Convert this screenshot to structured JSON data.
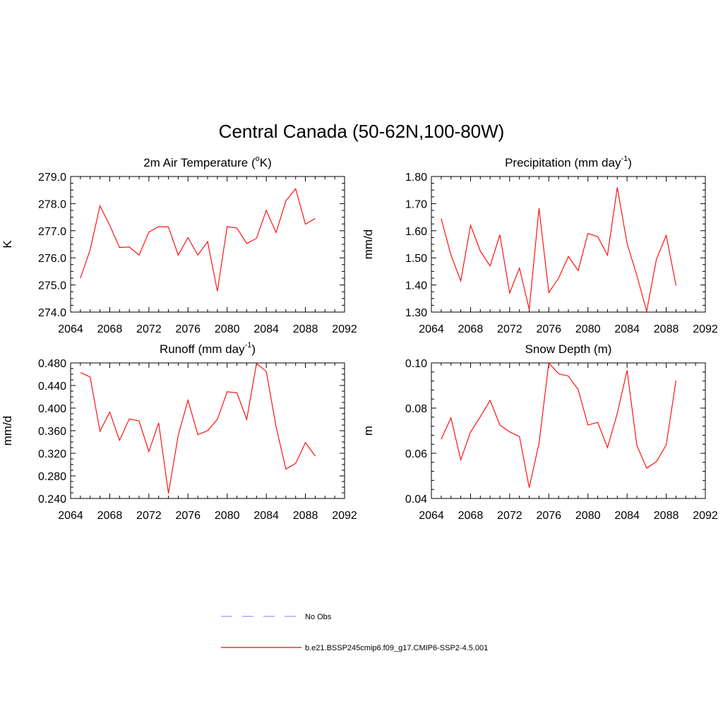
{
  "figure": {
    "title": "Central Canada (50-62N,100-80W)"
  },
  "chart_data": [
    {
      "type": "line",
      "title": "2m Air Temperature (°K)",
      "title_parts": [
        "2m Air Temperature (",
        "o",
        "K)"
      ],
      "xlabel": "",
      "ylabel": "K",
      "xlim": [
        2064,
        2092
      ],
      "ylim": [
        274.0,
        279.0
      ],
      "xticks": [
        "2064",
        "2068",
        "2072",
        "2076",
        "2080",
        "2084",
        "2088",
        "2092"
      ],
      "yticks": [
        "274.0",
        "275.0",
        "276.0",
        "277.0",
        "278.0",
        "279.0"
      ],
      "x": [
        2065,
        2066,
        2067,
        2068,
        2069,
        2070,
        2071,
        2072,
        2073,
        2074,
        2075,
        2076,
        2077,
        2078,
        2079,
        2080,
        2081,
        2082,
        2083,
        2084,
        2085,
        2086,
        2087,
        2088,
        2089
      ],
      "series": [
        {
          "name": "b.e21.BSSP245cmip6.f09_g17.CMIP6-SSP2-4.5.001",
          "color": "#ff0000",
          "values": [
            275.25,
            276.3,
            277.92,
            277.2,
            276.38,
            276.4,
            276.1,
            276.95,
            277.15,
            277.14,
            276.1,
            276.75,
            276.1,
            276.6,
            274.77,
            277.15,
            277.1,
            276.53,
            276.72,
            277.75,
            276.93,
            278.1,
            278.55,
            277.24,
            277.45
          ]
        }
      ]
    },
    {
      "type": "line",
      "title": "Precipitation (mm day-1)",
      "title_parts": [
        "Precipitation (mm day",
        "-1",
        ")"
      ],
      "xlabel": "",
      "ylabel": "mm/d",
      "xlim": [
        2064,
        2092
      ],
      "ylim": [
        1.3,
        1.8
      ],
      "xticks": [
        "2064",
        "2068",
        "2072",
        "2076",
        "2080",
        "2084",
        "2088",
        "2092"
      ],
      "yticks": [
        "1.30",
        "1.40",
        "1.50",
        "1.60",
        "1.70",
        "1.80"
      ],
      "x": [
        2065,
        2066,
        2067,
        2068,
        2069,
        2070,
        2071,
        2072,
        2073,
        2074,
        2075,
        2076,
        2077,
        2078,
        2079,
        2080,
        2081,
        2082,
        2083,
        2084,
        2085,
        2086,
        2087,
        2088,
        2089
      ],
      "series": [
        {
          "name": "b.e21.BSSP245cmip6.f09_g17.CMIP6-SSP2-4.5.001",
          "color": "#ff0000",
          "values": [
            1.645,
            1.51,
            1.415,
            1.62,
            1.525,
            1.47,
            1.585,
            1.37,
            1.462,
            1.31,
            1.683,
            1.372,
            1.425,
            1.505,
            1.453,
            1.59,
            1.578,
            1.51,
            1.76,
            1.553,
            1.435,
            1.303,
            1.495,
            1.583,
            1.398
          ]
        }
      ]
    },
    {
      "type": "line",
      "title": "Runoff (mm day-1)",
      "title_parts": [
        "Runoff (mm day",
        "-1",
        ")"
      ],
      "xlabel": "",
      "ylabel": "mm/d",
      "xlim": [
        2064,
        2092
      ],
      "ylim": [
        0.24,
        0.48
      ],
      "xticks": [
        "2064",
        "2068",
        "2072",
        "2076",
        "2080",
        "2084",
        "2088",
        "2092"
      ],
      "yticks": [
        "0.240",
        "0.280",
        "0.320",
        "0.360",
        "0.400",
        "0.440",
        "0.480"
      ],
      "x": [
        2065,
        2066,
        2067,
        2068,
        2069,
        2070,
        2071,
        2072,
        2073,
        2074,
        2075,
        2076,
        2077,
        2078,
        2079,
        2080,
        2081,
        2082,
        2083,
        2084,
        2085,
        2086,
        2087,
        2088,
        2089
      ],
      "series": [
        {
          "name": "b.e21.BSSP245cmip6.f09_g17.CMIP6-SSP2-4.5.001",
          "color": "#ff0000",
          "values": [
            0.463,
            0.455,
            0.359,
            0.393,
            0.343,
            0.381,
            0.377,
            0.323,
            0.374,
            0.249,
            0.352,
            0.414,
            0.353,
            0.36,
            0.38,
            0.429,
            0.427,
            0.38,
            0.479,
            0.465,
            0.367,
            0.292,
            0.302,
            0.339,
            0.315
          ]
        }
      ]
    },
    {
      "type": "line",
      "title": "Snow Depth (m)",
      "title_parts": [
        "Snow Depth (m)",
        "",
        ""
      ],
      "xlabel": "",
      "ylabel": "m",
      "xlim": [
        2064,
        2092
      ],
      "ylim": [
        0.04,
        0.1
      ],
      "xticks": [
        "2064",
        "2068",
        "2072",
        "2076",
        "2080",
        "2084",
        "2088",
        "2092"
      ],
      "yticks": [
        "0.04",
        "0.06",
        "0.08",
        "0.10"
      ],
      "x": [
        2065,
        2066,
        2067,
        2068,
        2069,
        2070,
        2071,
        2072,
        2073,
        2074,
        2075,
        2076,
        2077,
        2078,
        2079,
        2080,
        2081,
        2082,
        2083,
        2084,
        2085,
        2086,
        2087,
        2088,
        2089
      ],
      "series": [
        {
          "name": "b.e21.BSSP245cmip6.f09_g17.CMIP6-SSP2-4.5.001",
          "color": "#ff0000",
          "values": [
            0.0662,
            0.0757,
            0.0571,
            0.0694,
            0.0762,
            0.0834,
            0.0725,
            0.0695,
            0.0674,
            0.0448,
            0.0645,
            0.1,
            0.0952,
            0.0942,
            0.0882,
            0.0725,
            0.0737,
            0.0625,
            0.0777,
            0.0967,
            0.0635,
            0.0534,
            0.0563,
            0.0637,
            0.0922
          ]
        }
      ]
    }
  ],
  "legend": {
    "entries": [
      {
        "label": "No Obs",
        "color": "#9999ff",
        "style": "dashed"
      },
      {
        "label": "b.e21.BSSP245cmip6.f09_g17.CMIP6-SSP2-4.5.001",
        "color": "#ff0000",
        "style": "solid"
      }
    ]
  }
}
